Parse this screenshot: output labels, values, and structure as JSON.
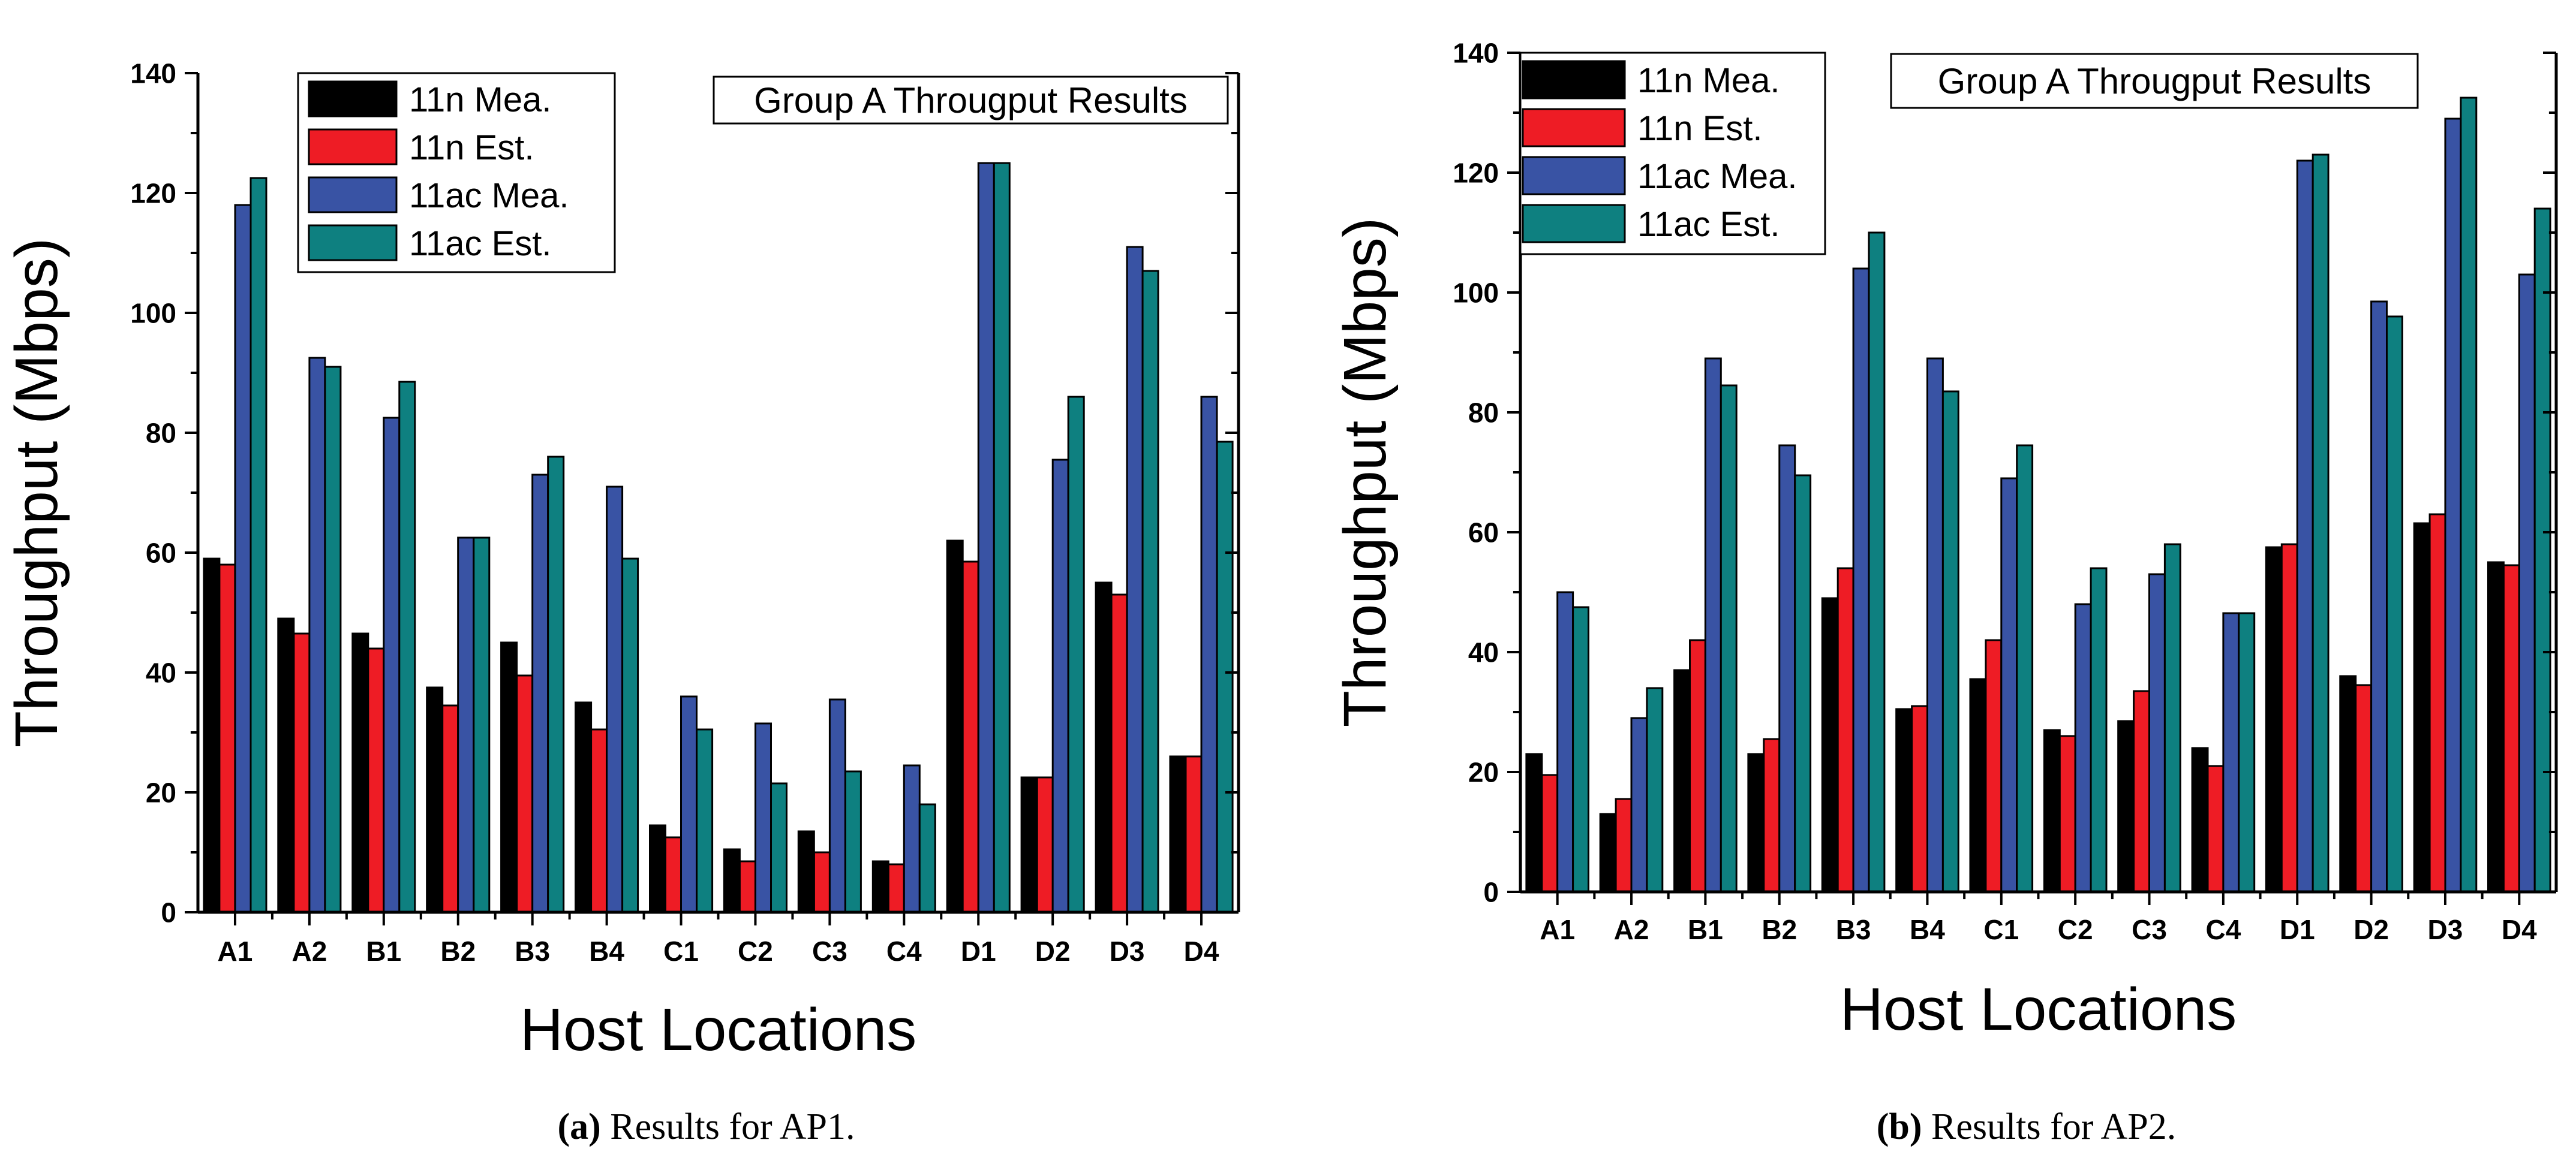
{
  "colors": {
    "11n_mea": "#000000",
    "11n_est": "#ee1c25",
    "11ac_mea": "#3953a4",
    "11ac_est": "#0e8080",
    "axis": "#000000"
  },
  "chart_data": [
    {
      "type": "bar",
      "title": "Group A Througput Results",
      "xlabel": "Host Locations",
      "ylabel": "Throughput (Mbps)",
      "ylim": [
        0,
        140
      ],
      "yticks": [
        0,
        20,
        40,
        60,
        80,
        100,
        120,
        140
      ],
      "legend_position": "top-left",
      "categories": [
        "A1",
        "A2",
        "B1",
        "B2",
        "B3",
        "B4",
        "C1",
        "C2",
        "C3",
        "C4",
        "D1",
        "D2",
        "D3",
        "D4"
      ],
      "series": [
        {
          "name": "11n Mea.",
          "color_key": "11n_mea",
          "values": [
            59,
            49,
            46.5,
            37.5,
            45,
            35,
            14.5,
            10.5,
            13.5,
            8.5,
            62,
            22.5,
            55,
            26
          ]
        },
        {
          "name": "11n Est.",
          "color_key": "11n_est",
          "values": [
            58,
            46.5,
            44,
            34.5,
            39.5,
            30.5,
            12.5,
            8.5,
            10,
            8,
            58.5,
            22.5,
            53,
            26
          ]
        },
        {
          "name": "11ac Mea.",
          "color_key": "11ac_mea",
          "values": [
            118,
            92.5,
            82.5,
            62.5,
            73,
            71,
            36,
            31.5,
            35.5,
            24.5,
            125,
            75.5,
            111,
            86
          ]
        },
        {
          "name": "11ac Est.",
          "color_key": "11ac_est",
          "values": [
            122.5,
            91,
            88.5,
            62.5,
            76,
            59,
            30.5,
            21.5,
            23.5,
            18,
            125,
            86,
            107,
            78.5
          ]
        }
      ],
      "caption_letter": "(a)",
      "caption_text": " Results for AP1."
    },
    {
      "type": "bar",
      "title": "Group A Througput Results",
      "xlabel": "Host Locations",
      "ylabel": "Throughput (Mbps)",
      "ylim": [
        0,
        140
      ],
      "yticks": [
        0,
        20,
        40,
        60,
        80,
        100,
        120,
        140
      ],
      "legend_position": "top-left",
      "categories": [
        "A1",
        "A2",
        "B1",
        "B2",
        "B3",
        "B4",
        "C1",
        "C2",
        "C3",
        "C4",
        "D1",
        "D2",
        "D3",
        "D4"
      ],
      "series": [
        {
          "name": "11n Mea.",
          "color_key": "11n_mea",
          "values": [
            23,
            13,
            37,
            23,
            49,
            30.5,
            35.5,
            27,
            28.5,
            24,
            57.5,
            36,
            61.5,
            55
          ]
        },
        {
          "name": "11n Est.",
          "color_key": "11n_est",
          "values": [
            19.5,
            15.5,
            42,
            25.5,
            54,
            31,
            42,
            26,
            33.5,
            21,
            58,
            34.5,
            63,
            54.5
          ]
        },
        {
          "name": "11ac Mea.",
          "color_key": "11ac_mea",
          "values": [
            50,
            29,
            89,
            74.5,
            104,
            89,
            69,
            48,
            53,
            46.5,
            122,
            98.5,
            129,
            103
          ]
        },
        {
          "name": "11ac Est.",
          "color_key": "11ac_est",
          "values": [
            47.5,
            34,
            84.5,
            69.5,
            110,
            83.5,
            74.5,
            54,
            58,
            46.5,
            123,
            96,
            132.5,
            114
          ]
        }
      ],
      "caption_letter": "(b)",
      "caption_text": " Results for AP2."
    }
  ]
}
